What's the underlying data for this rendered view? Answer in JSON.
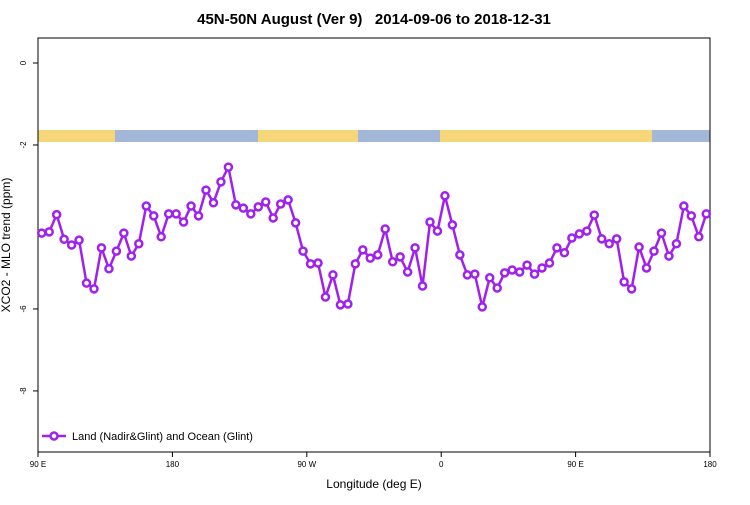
{
  "chart_data": {
    "type": "line",
    "title": "45N-50N August (Ver 9)   2014-09-06 to 2018-12-31",
    "xlabel": "Longitude (deg E)",
    "ylabel": "XCO2 - MLO trend (ppm)",
    "xlim": [
      90,
      540
    ],
    "ylim": [
      -9.49,
      0.61
    ],
    "xticks": [
      {
        "value": 90,
        "label": "90 E"
      },
      {
        "value": 180,
        "label": "180"
      },
      {
        "value": 270,
        "label": "90 W"
      },
      {
        "value": 360,
        "label": "0"
      },
      {
        "value": 450,
        "label": "90 E"
      },
      {
        "value": 540,
        "label": "180"
      }
    ],
    "yticks": [
      0,
      -2,
      -6,
      -8
    ],
    "legend": "bottom-left",
    "x": [
      92.5,
      97.5,
      102.5,
      107.5,
      112.5,
      117.5,
      122.5,
      127.5,
      132.5,
      137.5,
      142.5,
      147.5,
      152.5,
      157.5,
      162.5,
      167.5,
      172.5,
      177.5,
      182.5,
      187.5,
      192.5,
      197.5,
      202.5,
      207.5,
      212.5,
      217.5,
      222.5,
      227.5,
      232.5,
      237.5,
      242.5,
      247.5,
      252.5,
      257.5,
      262.5,
      267.5,
      272.5,
      277.5,
      282.5,
      287.5,
      292.5,
      297.5,
      302.5,
      307.5,
      312.5,
      317.5,
      322.5,
      327.5,
      332.5,
      337.5,
      342.5,
      347.5,
      352.5,
      357.5,
      362.5,
      367.5,
      372.5,
      377.5,
      382.5,
      387.5,
      392.5,
      397.5,
      402.5,
      407.5,
      412.5,
      417.5,
      422.5,
      427.5,
      432.5,
      437.5,
      442.5,
      447.5,
      452.5,
      457.5,
      462.5,
      467.5,
      472.5,
      477.5,
      482.5,
      487.5,
      492.5,
      497.5,
      502.5,
      507.5,
      512.5,
      517.5,
      522.5,
      527.5,
      532.5,
      537.5
    ],
    "series": [
      {
        "name": "Land (Nadir&Glint) and Ocean (Glint)",
        "color": "#a020f0",
        "values": [
          -4.15,
          -4.12,
          -3.7,
          -4.3,
          -4.44,
          -4.32,
          -5.37,
          -5.51,
          -4.51,
          -5.02,
          -4.59,
          -4.15,
          -4.71,
          -4.41,
          -3.49,
          -3.73,
          -4.24,
          -3.68,
          -3.68,
          -3.88,
          -3.49,
          -3.73,
          -3.1,
          -3.41,
          -2.9,
          -2.54,
          -3.46,
          -3.54,
          -3.68,
          -3.51,
          -3.39,
          -3.78,
          -3.44,
          -3.34,
          -3.9,
          -4.59,
          -4.9,
          -4.88,
          -5.71,
          -5.17,
          -5.9,
          -5.88,
          -4.9,
          -4.56,
          -4.76,
          -4.68,
          -4.05,
          -4.85,
          -4.73,
          -5.1,
          -4.51,
          -5.44,
          -3.88,
          -4.1,
          -3.24,
          -3.95,
          -4.68,
          -5.17,
          -5.15,
          -5.95,
          -5.24,
          -5.49,
          -5.12,
          -5.05,
          -5.1,
          -4.93,
          -5.15,
          -5.0,
          -4.88,
          -4.51,
          -4.63,
          -4.27,
          -4.17,
          -4.1,
          -3.71,
          -4.29,
          -4.41,
          -4.29,
          -5.34,
          -5.51,
          -4.49,
          -5.0,
          -4.59,
          -4.15,
          -4.71,
          -4.41,
          -3.49,
          -3.73,
          -4.24,
          -3.68
        ]
      }
    ]
  }
}
